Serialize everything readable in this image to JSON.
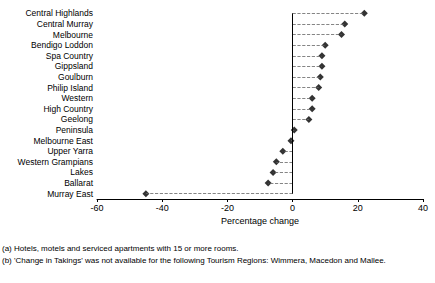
{
  "chart_data": {
    "type": "dot",
    "orientation": "horizontal",
    "categories": [
      "Central Highlands",
      "Central Murray",
      "Melbourne",
      "Bendigo Loddon",
      "Spa Country",
      "Gippsland",
      "Goulburn",
      "Philip Island",
      "Western",
      "High Country",
      "Geelong",
      "Peninsula",
      "Melbourne East",
      "Upper Yarra",
      "Western Grampians",
      "Lakes",
      "Ballarat",
      "Murray East"
    ],
    "values": [
      22,
      16,
      15,
      10,
      9,
      9,
      8.5,
      8,
      6,
      6,
      5,
      0.5,
      -0.5,
      -3,
      -5,
      -6,
      -7.5,
      -45
    ],
    "color": "#000000",
    "marker": "diamond",
    "line_style": "dashed",
    "xlabel": "Percentage change",
    "xlim": [
      -60,
      40
    ],
    "xticks": [
      -60,
      -40,
      -20,
      0,
      20,
      40
    ],
    "grid": false,
    "annotations": [
      "(a) Hotels, motels and serviced apartments with 15 or more rooms.",
      "(b) 'Change in Takings' was not available for the following Tourism Regions: Wimmera, Macedon and Mallee."
    ]
  }
}
